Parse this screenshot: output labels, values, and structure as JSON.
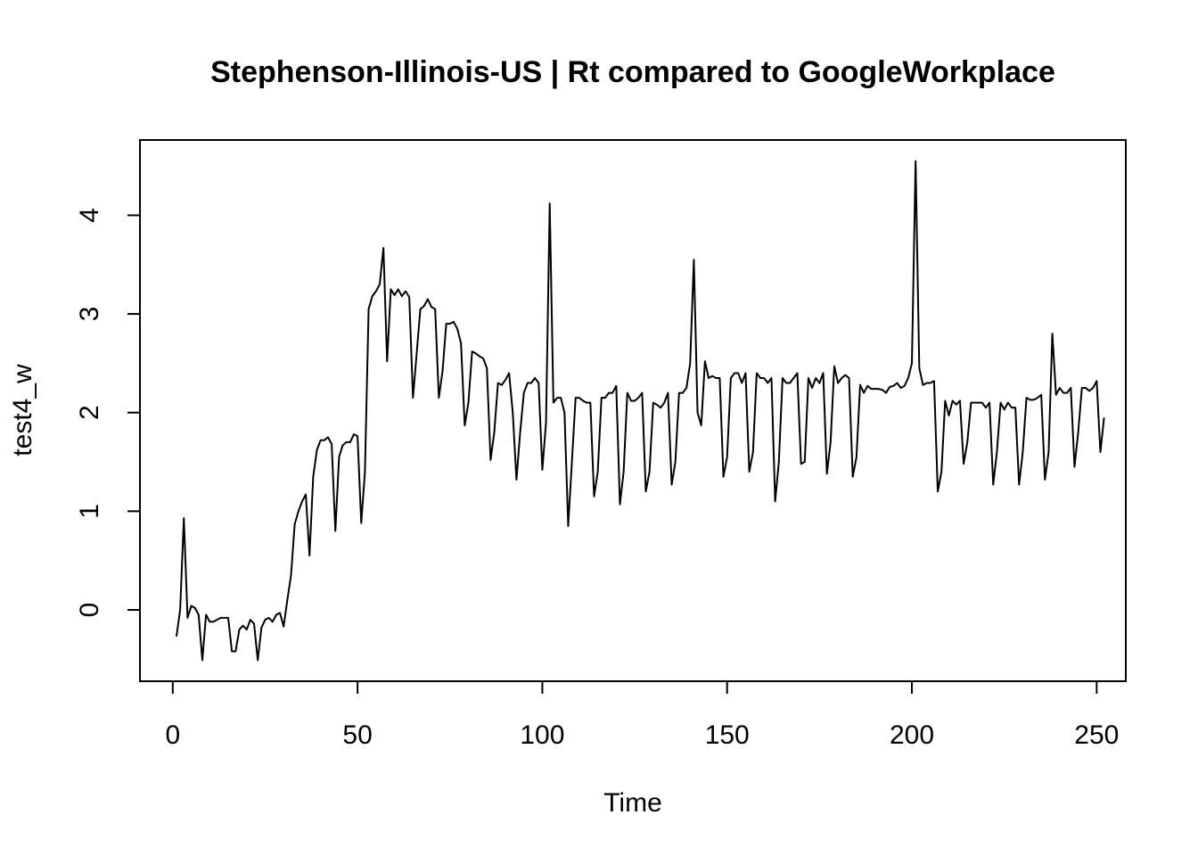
{
  "chart_data": {
    "type": "line",
    "title": "Stephenson-Illinois-US | Rt compared to GoogleWorkplace",
    "xlabel": "Time",
    "ylabel": "test4_w",
    "xlim": [
      1,
      248
    ],
    "ylim": [
      -0.52,
      4.56
    ],
    "x_ticks": [
      0,
      50,
      100,
      150,
      200,
      250
    ],
    "x_tick_labels": [
      "0",
      "50",
      "100",
      "150",
      "200",
      "250"
    ],
    "y_ticks": [
      0,
      1,
      2,
      3,
      4
    ],
    "y_tick_labels": [
      "0",
      "1",
      "2",
      "3",
      "4"
    ],
    "grid": false,
    "legend": "none",
    "line_color": "#000000",
    "series": [
      {
        "values": [
          -0.27,
          0.0,
          0.93,
          -0.08,
          0.04,
          0.02,
          -0.05,
          -0.51,
          -0.05,
          -0.12,
          -0.12,
          -0.1,
          -0.08,
          -0.08,
          -0.08,
          -0.42,
          -0.42,
          -0.2,
          -0.16,
          -0.2,
          -0.1,
          -0.14,
          -0.51,
          -0.18,
          -0.1,
          -0.08,
          -0.12,
          -0.05,
          -0.03,
          -0.17,
          0.1,
          0.35,
          0.87,
          1.0,
          1.1,
          1.17,
          0.55,
          1.35,
          1.62,
          1.72,
          1.72,
          1.75,
          1.68,
          0.8,
          1.55,
          1.67,
          1.7,
          1.7,
          1.78,
          1.76,
          0.88,
          1.4,
          3.05,
          3.18,
          3.23,
          3.3,
          3.67,
          2.52,
          3.25,
          3.19,
          3.25,
          3.18,
          3.23,
          3.17,
          2.15,
          2.6,
          3.05,
          3.08,
          3.15,
          3.07,
          3.05,
          2.15,
          2.42,
          2.9,
          2.9,
          2.92,
          2.85,
          2.7,
          1.87,
          2.1,
          2.62,
          2.6,
          2.57,
          2.55,
          2.45,
          1.52,
          1.8,
          2.3,
          2.28,
          2.33,
          2.4,
          2.0,
          1.32,
          1.8,
          2.2,
          2.3,
          2.3,
          2.35,
          2.3,
          1.42,
          1.9,
          4.12,
          2.1,
          2.15,
          2.15,
          2.0,
          0.85,
          1.5,
          2.15,
          2.15,
          2.12,
          2.1,
          2.1,
          1.15,
          1.4,
          2.15,
          2.15,
          2.2,
          2.2,
          2.27,
          1.07,
          1.4,
          2.2,
          2.12,
          2.12,
          2.15,
          2.2,
          1.2,
          1.4,
          2.1,
          2.08,
          2.05,
          2.1,
          2.2,
          1.27,
          1.5,
          2.2,
          2.2,
          2.25,
          2.5,
          3.55,
          2.0,
          1.87,
          2.52,
          2.35,
          2.37,
          2.35,
          2.35,
          1.35,
          1.55,
          2.35,
          2.4,
          2.4,
          2.3,
          2.4,
          1.4,
          1.6,
          2.4,
          2.35,
          2.35,
          2.3,
          2.35,
          1.1,
          1.5,
          2.35,
          2.3,
          2.3,
          2.35,
          2.4,
          1.48,
          1.5,
          2.35,
          2.25,
          2.35,
          2.3,
          2.4,
          1.38,
          1.7,
          2.47,
          2.3,
          2.35,
          2.38,
          2.35,
          1.35,
          1.55,
          2.28,
          2.2,
          2.27,
          2.24,
          2.24,
          2.24,
          2.23,
          2.2,
          2.26,
          2.27,
          2.3,
          2.25,
          2.27,
          2.35,
          2.5,
          4.55,
          2.45,
          2.28,
          2.3,
          2.3,
          2.32,
          1.2,
          1.4,
          2.12,
          1.97,
          2.12,
          2.08,
          2.12,
          1.48,
          1.7,
          2.1,
          2.1,
          2.1,
          2.1,
          2.05,
          2.1,
          1.27,
          1.6,
          2.1,
          2.03,
          2.1,
          2.05,
          2.05,
          1.27,
          1.6,
          2.15,
          2.13,
          2.13,
          2.15,
          2.18,
          1.32,
          1.6,
          2.8,
          2.18,
          2.25,
          2.2,
          2.2,
          2.25,
          1.45,
          1.8,
          2.25,
          2.25,
          2.22,
          2.25,
          2.32,
          1.6,
          1.95
        ]
      }
    ]
  }
}
